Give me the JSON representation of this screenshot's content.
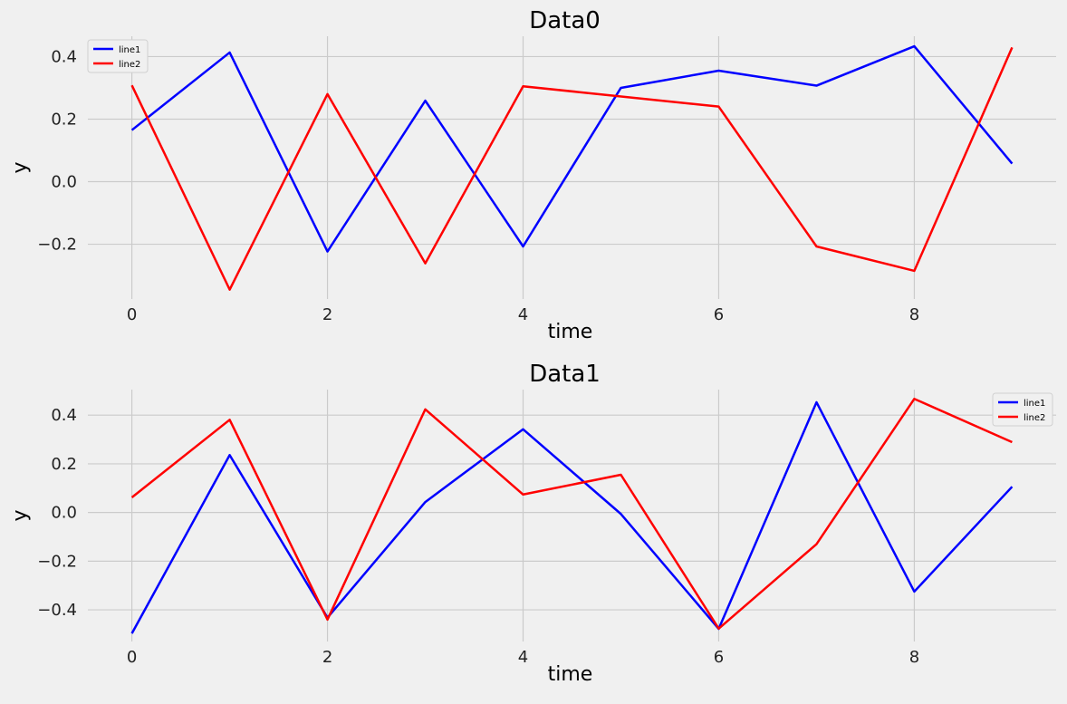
{
  "chart_data": [
    {
      "type": "line",
      "title": "Data0",
      "xlabel": "time",
      "ylabel": "y",
      "xlim": [
        -0.45,
        9.45
      ],
      "ylim": [
        -0.375,
        0.465
      ],
      "xticks": [
        0,
        2,
        4,
        6,
        8
      ],
      "xtick_labels": [
        "0",
        "2",
        "4",
        "6",
        "8"
      ],
      "yticks": [
        -0.2,
        0.0,
        0.2,
        0.4
      ],
      "ytick_labels": [
        "−0.2",
        "0.0",
        "0.2",
        "0.4"
      ],
      "grid": true,
      "legend": "top-left",
      "x": [
        0,
        1,
        2,
        3,
        4,
        5,
        6,
        7,
        8,
        9
      ],
      "series": [
        {
          "name": "line1",
          "color": "#0000ff",
          "values": [
            0.165,
            0.413,
            -0.223,
            0.259,
            -0.207,
            0.3,
            0.355,
            0.307,
            0.433,
            0.058
          ]
        },
        {
          "name": "line2",
          "color": "#ff0000",
          "values": [
            0.308,
            -0.345,
            0.28,
            -0.261,
            0.305,
            null,
            0.24,
            -0.207,
            -0.285,
            0.429
          ]
        }
      ]
    },
    {
      "type": "line",
      "title": "Data1",
      "xlabel": "time",
      "ylabel": "y",
      "xlim": [
        -0.45,
        9.45
      ],
      "ylim": [
        -0.53,
        0.505
      ],
      "xticks": [
        0,
        2,
        4,
        6,
        8
      ],
      "xtick_labels": [
        "0",
        "2",
        "4",
        "6",
        "8"
      ],
      "yticks": [
        -0.4,
        -0.2,
        0.0,
        0.2,
        0.4
      ],
      "ytick_labels": [
        "−0.4",
        "−0.2",
        "0.0",
        "0.2",
        "0.4"
      ],
      "grid": true,
      "legend": "top-right",
      "x": [
        0,
        1,
        2,
        3,
        4,
        5,
        6,
        7,
        8,
        9
      ],
      "series": [
        {
          "name": "line1",
          "color": "#0000ff",
          "values": [
            -0.497,
            0.236,
            -0.432,
            0.043,
            0.342,
            -0.006,
            -0.478,
            0.453,
            -0.325,
            0.106
          ]
        },
        {
          "name": "line2",
          "color": "#ff0000",
          "values": [
            0.062,
            0.381,
            -0.44,
            0.424,
            0.074,
            0.155,
            -0.477,
            -0.13,
            0.467,
            0.289
          ]
        }
      ]
    }
  ]
}
